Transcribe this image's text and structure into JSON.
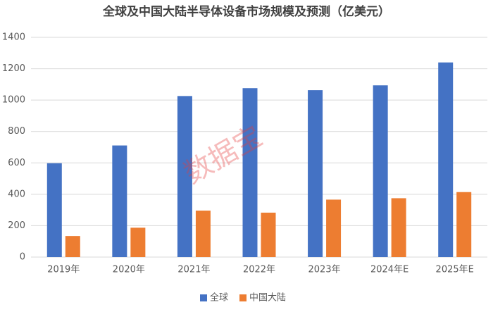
{
  "chart_data": {
    "type": "bar",
    "title": "全球及中国大陆半导体设备市场规模及预测（亿美元）",
    "categories": [
      "2019年",
      "2020年",
      "2021年",
      "2022年",
      "2023年",
      "2024年E",
      "2025年E"
    ],
    "series": [
      {
        "name": "全球",
        "color": "#4472c4",
        "values": [
          598,
          711,
          1026,
          1076,
          1063,
          1094,
          1240
        ]
      },
      {
        "name": "中国大陆",
        "color": "#ed7d31",
        "values": [
          134,
          187,
          296,
          283,
          366,
          375,
          414
        ]
      }
    ],
    "ylim": [
      0,
      1400
    ],
    "yticks": [
      0,
      200,
      400,
      600,
      800,
      1000,
      1200,
      1400
    ],
    "grid": true,
    "legend": "bottom",
    "watermark": "数据宝"
  }
}
